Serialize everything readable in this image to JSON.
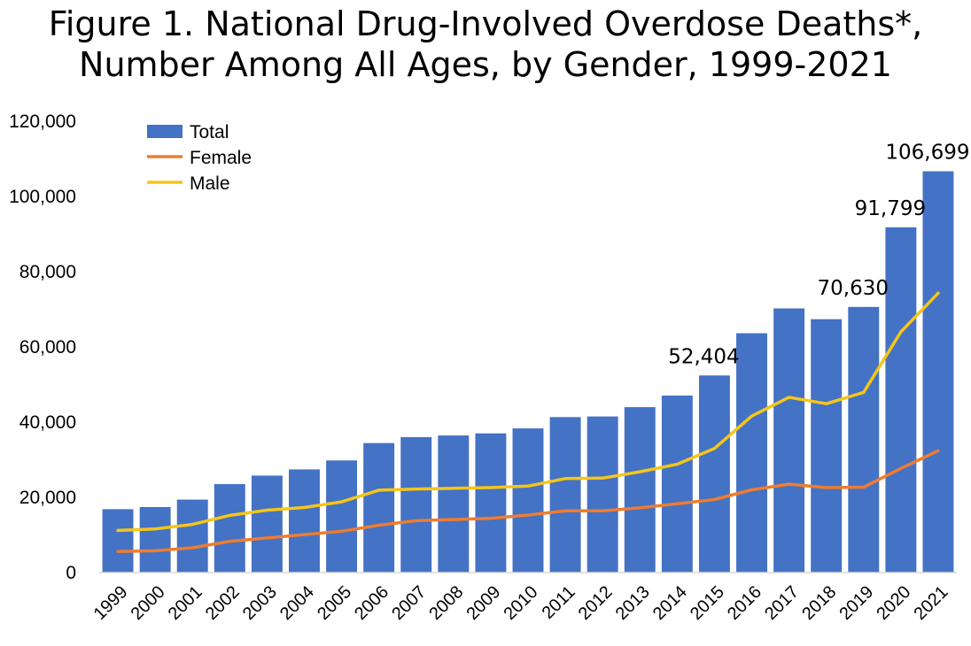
{
  "chart_data": {
    "type": "bar",
    "title": [
      "Figure 1. National Drug-Involved Overdose Deaths*,",
      "Number Among All Ages, by Gender, 1999-2021"
    ],
    "categories": [
      "1999",
      "2000",
      "2001",
      "2002",
      "2003",
      "2004",
      "2005",
      "2006",
      "2007",
      "2008",
      "2009",
      "2010",
      "2011",
      "2012",
      "2013",
      "2014",
      "2015",
      "2016",
      "2017",
      "2018",
      "2019",
      "2020",
      "2021"
    ],
    "ylim": [
      0,
      120000
    ],
    "yticks": [
      0,
      20000,
      40000,
      60000,
      80000,
      100000,
      120000
    ],
    "ytick_labels": [
      "0",
      "20,000",
      "40,000",
      "60,000",
      "80,000",
      "100,000",
      "120,000"
    ],
    "grid": false,
    "legend_position": "top-left",
    "series": [
      {
        "name": "Total",
        "kind": "bar",
        "color": "#4472C4",
        "values": [
          16849,
          17415,
          19394,
          23518,
          25785,
          27424,
          29813,
          34425,
          36010,
          36450,
          37004,
          38329,
          41340,
          41502,
          43982,
          47055,
          52404,
          63632,
          70237,
          67367,
          70630,
          91799,
          106699
        ]
      },
      {
        "name": "Female",
        "kind": "line",
        "color": "#ED7D31",
        "values": [
          5600,
          5800,
          6600,
          8300,
          9200,
          10100,
          11000,
          12600,
          13800,
          14100,
          14400,
          15300,
          16400,
          16400,
          17200,
          18300,
          19400,
          22000,
          23500,
          22600,
          22700,
          27700,
          32400
        ]
      },
      {
        "name": "Male",
        "kind": "line",
        "color": "#F5C518",
        "values": [
          11200,
          11600,
          12800,
          15200,
          16600,
          17300,
          18800,
          21900,
          22200,
          22400,
          22600,
          23000,
          25000,
          25100,
          26800,
          28800,
          33000,
          41600,
          46600,
          44900,
          47900,
          64000,
          74300
        ]
      }
    ],
    "data_labels": [
      {
        "category": "2015",
        "text": "52,404"
      },
      {
        "category": "2019",
        "text": "70,630"
      },
      {
        "category": "2020",
        "text": "91,799"
      },
      {
        "category": "2021",
        "text": "106,699"
      }
    ]
  }
}
